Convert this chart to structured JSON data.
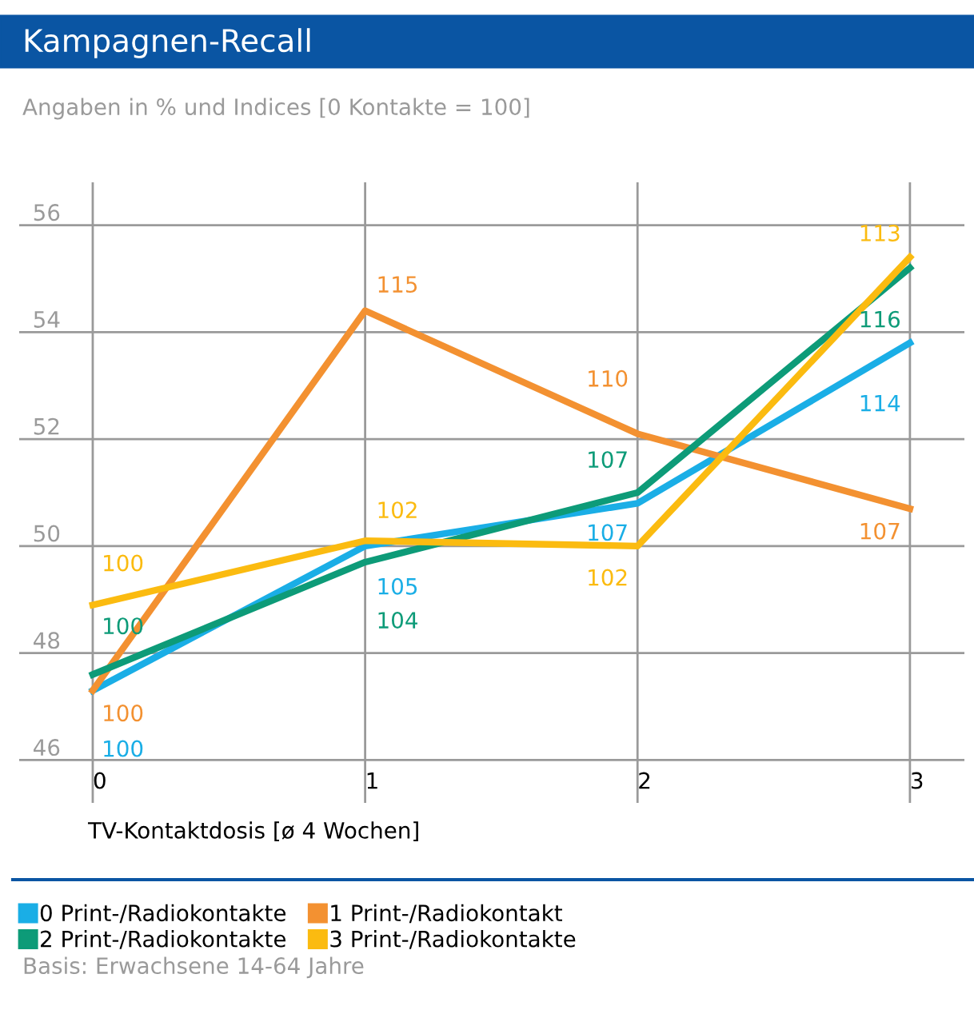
{
  "chart_data": {
    "type": "line",
    "title": "Kampagnen-Recall",
    "subtitle": "Angaben in % und Indices [0 Kontakte = 100]",
    "xlabel": "TV-Kontaktdosis [ø 4 Wochen]",
    "x": [
      0,
      1,
      2,
      3
    ],
    "series": [
      {
        "name": "0 Print-/Radiokontakte",
        "color": "#1aaee6",
        "values": [
          47.3,
          50.0,
          50.8,
          53.8
        ]
      },
      {
        "name": "1 Print-/Radiokontakt",
        "color": "#f39131",
        "values": [
          47.3,
          54.4,
          52.1,
          50.7
        ]
      },
      {
        "name": "2 Print-/Radiokontakte",
        "color": "#0d9b78",
        "values": [
          47.6,
          49.7,
          51.0,
          55.2
        ]
      },
      {
        "name": "3 Print-/Radiokontakte",
        "color": "#fbbb10",
        "values": [
          48.9,
          50.1,
          50.0,
          55.4
        ]
      }
    ],
    "xlim": [
      -0.27,
      3.2
    ],
    "ylim": [
      45.2,
      56.8
    ],
    "xticks": [
      0,
      1,
      2,
      3
    ],
    "yticks": [
      46,
      48,
      50,
      52,
      54,
      56
    ],
    "grid": true,
    "legend": "bottom",
    "marker": "none",
    "line_style": "solid",
    "annotations": [
      {
        "text": "100",
        "x": 0,
        "y": 47.3
      },
      {
        "text": "105",
        "x": 1,
        "y": 50.0
      },
      {
        "text": "107",
        "x": 2,
        "y": 50.8
      },
      {
        "text": "114",
        "x": 3,
        "y": 53.8
      },
      {
        "text": "100",
        "x": 0,
        "y": 47.3
      },
      {
        "text": "115",
        "x": 1,
        "y": 54.4
      },
      {
        "text": "110",
        "x": 2,
        "y": 52.1
      },
      {
        "text": "107",
        "x": 3,
        "y": 50.7
      },
      {
        "text": "100",
        "x": 0,
        "y": 47.6
      },
      {
        "text": "104",
        "x": 1,
        "y": 49.7
      },
      {
        "text": "107",
        "x": 2,
        "y": 51.0
      },
      {
        "text": "116",
        "x": 3,
        "y": 55.2
      },
      {
        "text": "100",
        "x": 0,
        "y": 48.9
      },
      {
        "text": "102",
        "x": 1,
        "y": 50.1
      },
      {
        "text": "102",
        "x": 2,
        "y": 50.0
      },
      {
        "text": "113",
        "x": 3,
        "y": 55.4
      },
      "Basis: Erwachsene 14-64 Jahre"
    ]
  }
}
